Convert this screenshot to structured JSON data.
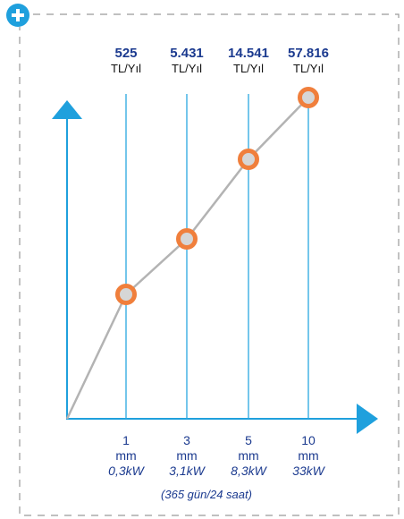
{
  "chart_data": {
    "type": "line",
    "categories": [
      "1",
      "3",
      "5",
      "10"
    ],
    "category_unit": "mm",
    "power_labels": [
      "0,3kW",
      "3,1kW",
      "8,3kW",
      "33kW"
    ],
    "values": [
      525,
      5431,
      14541,
      57816
    ],
    "value_labels": [
      "525",
      "5.431",
      "14.541",
      "57.816"
    ],
    "value_unit": "TL/Yıl",
    "footnote": "(365 gün/24 saat)",
    "grid": false,
    "colors": {
      "line": "#b3b3b3",
      "markers": "#f07f3c",
      "guides": "#29a8e0",
      "axes": "#1fa0dd",
      "text": "#1b3a8f"
    }
  },
  "ui": {
    "expand_icon": "plus-circle-icon",
    "frame_color": "#9a9a9a"
  }
}
